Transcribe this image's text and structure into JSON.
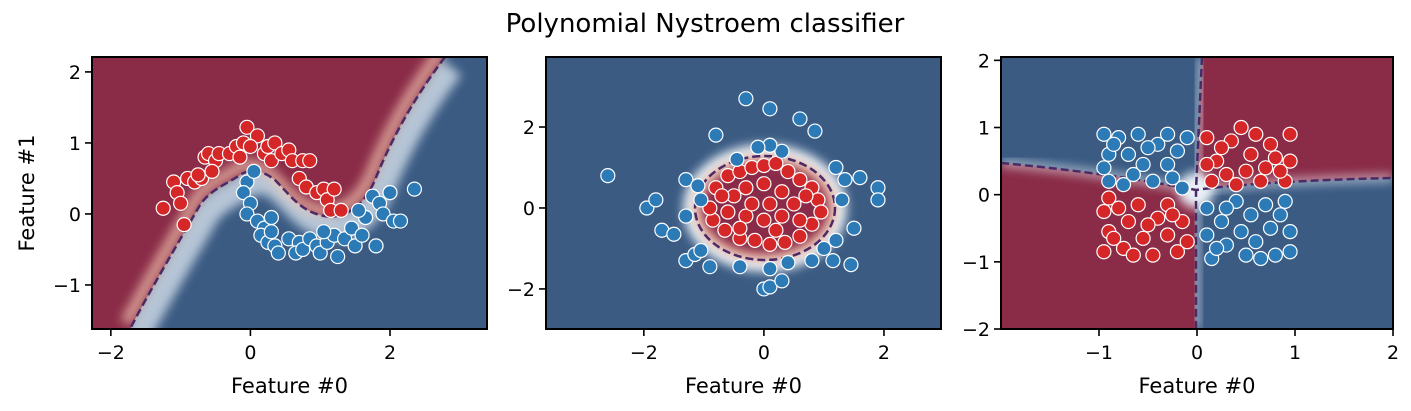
{
  "title": "Polynomial Nystroem classifier",
  "chart_data": [
    {
      "type": "scatter",
      "xlabel": "Feature #0",
      "ylabel": "Feature #1",
      "xlim": [
        -2.27,
        3.39
      ],
      "ylim": [
        -1.62,
        2.21
      ],
      "xticks": [
        {
          "value": -2,
          "label": "−2"
        },
        0,
        2
      ],
      "yticks": [
        {
          "value": -1,
          "label": "−1"
        },
        0,
        1,
        2
      ],
      "series": [
        {
          "color": "#d62728",
          "x": [
            -1.25,
            -1.1,
            -1.05,
            -1.0,
            -0.95,
            -0.9,
            -0.8,
            -0.7,
            -0.65,
            -0.6,
            -0.5,
            -0.45,
            -0.3,
            -0.2,
            -0.15,
            -0.1,
            -0.05,
            0.1,
            0.2,
            0.25,
            0.3,
            0.35,
            0.45,
            0.55,
            0.6,
            0.75,
            0.85,
            0.7,
            0.8,
            0.95,
            1.05,
            1.1,
            1.15,
            1.3,
            1.2,
            -0.75,
            -0.55,
            0.0
          ],
          "values": [
            0.08,
            0.45,
            0.3,
            0.15,
            -0.15,
            0.5,
            0.45,
            0.5,
            0.8,
            0.85,
            0.75,
            0.85,
            0.85,
            0.95,
            0.8,
            1.0,
            1.22,
            1.1,
            0.85,
            0.95,
            0.75,
            1.0,
            0.85,
            0.9,
            0.75,
            0.75,
            0.75,
            0.5,
            0.38,
            0.3,
            0.35,
            0.2,
            0.05,
            0.05,
            0.35,
            0.55,
            0.6,
            0.95
          ]
        },
        {
          "color": "#2c7bb6",
          "x": [
            -0.05,
            -0.1,
            0.05,
            0.0,
            -0.05,
            0.1,
            0.2,
            0.15,
            0.25,
            0.35,
            0.3,
            0.55,
            0.7,
            0.65,
            0.75,
            0.85,
            0.95,
            1.0,
            1.1,
            1.2,
            1.25,
            1.35,
            1.45,
            1.5,
            1.6,
            1.65,
            1.75,
            1.85,
            1.9,
            2.0,
            2.05,
            2.15,
            2.35,
            1.55,
            0.3,
            1.05,
            0.4,
            1.8
          ],
          "values": [
            0.45,
            0.3,
            0.6,
            0.15,
            0.0,
            -0.1,
            -0.2,
            -0.3,
            -0.4,
            -0.45,
            -0.25,
            -0.35,
            -0.4,
            -0.55,
            -0.5,
            -0.35,
            -0.45,
            -0.55,
            -0.4,
            -0.3,
            -0.6,
            -0.35,
            -0.2,
            -0.45,
            -0.3,
            -0.05,
            0.25,
            0.15,
            0.0,
            0.3,
            -0.1,
            -0.1,
            0.35,
            0.05,
            -0.05,
            -0.25,
            -0.55,
            -0.45
          ]
        }
      ]
    },
    {
      "type": "scatter",
      "xlabel": "Feature #0",
      "xlim": [
        -3.63,
        2.95
      ],
      "ylim": [
        -2.99,
        3.73
      ],
      "xticks": [
        {
          "value": -2,
          "label": "−2"
        },
        0,
        2
      ],
      "yticks": [
        {
          "value": -2,
          "label": "−2"
        },
        0,
        2
      ],
      "series": [
        {
          "color": "#d62728",
          "x": [
            -0.8,
            -0.6,
            -0.4,
            -0.2,
            0,
            0.2,
            0.4,
            0.6,
            0.8,
            0.9,
            0.95,
            0.8,
            0.6,
            0.35,
            0.1,
            -0.15,
            -0.4,
            -0.65,
            -0.85,
            -0.9,
            -0.5,
            -0.3,
            0,
            0.3,
            0.5,
            0.3,
            0,
            -0.3,
            -0.6,
            0.1,
            -0.2,
            0.6,
            -0.4,
            0.2,
            0.7,
            -0.7
          ],
          "values": [
            0.5,
            0.8,
            0.9,
            1.0,
            1.05,
            1.1,
            0.9,
            0.7,
            0.5,
            0.2,
            -0.1,
            -0.4,
            -0.7,
            -0.85,
            -0.9,
            -0.8,
            -0.75,
            -0.55,
            -0.3,
            0,
            0.3,
            0.5,
            0.6,
            0.4,
            0.1,
            -0.2,
            -0.3,
            -0.2,
            -0.1,
            0.1,
            0.1,
            -0.3,
            -0.5,
            -0.55,
            0.3,
            0.3
          ]
        },
        {
          "color": "#2c7bb6",
          "x": [
            -2.6,
            -1.95,
            -1.8,
            -1.7,
            -1.5,
            -1.3,
            -1.15,
            -1.3,
            -1.1,
            -1.05,
            -0.8,
            -0.45,
            -0.3,
            0.1,
            0.3,
            0.6,
            0.85,
            0.1,
            -0.1,
            1.2,
            1.35,
            1.6,
            1.9,
            1.9,
            1.5,
            1.2,
            1.45,
            1.15,
            0.8,
            0.4,
            0.1,
            0.0,
            0.1,
            -0.4,
            -0.9,
            -1.05,
            0.3,
            1.0,
            -1.3,
            1.3
          ],
          "values": [
            0.8,
            0,
            0.2,
            -0.55,
            -0.65,
            -1.3,
            -1.15,
            0.7,
            0.55,
            0.2,
            1.8,
            1.2,
            2.7,
            2.45,
            1.4,
            2.2,
            1.9,
            1.55,
            1.5,
            1.0,
            0.7,
            0.75,
            0.5,
            0.2,
            -0.5,
            -0.8,
            -1.4,
            -1.3,
            -1.3,
            -1.35,
            -1.5,
            -2.0,
            -1.95,
            -1.45,
            -1.45,
            -1.05,
            -1.8,
            -1.0,
            -0.2,
            0.2
          ]
        }
      ]
    },
    {
      "type": "scatter",
      "xlabel": "Feature #0",
      "xlim": [
        -2,
        2
      ],
      "ylim": [
        -2,
        2.05
      ],
      "xticks": [
        {
          "value": -1,
          "label": "−1"
        },
        0,
        1,
        2
      ],
      "yticks": [
        {
          "value": -2,
          "label": "−2"
        },
        {
          "value": -1,
          "label": "−1"
        },
        0,
        1,
        2
      ],
      "series": [
        {
          "color": "#d62728",
          "x": [
            0.1,
            0.2,
            0.3,
            0.35,
            0.45,
            0.55,
            0.6,
            0.7,
            0.8,
            0.9,
            0.95,
            0.95,
            0.15,
            0.4,
            0.65,
            0.25,
            0.5,
            0.75,
            0.85,
            0.1,
            -0.95,
            -0.9,
            -0.95,
            -0.9,
            -0.75,
            -0.7,
            -0.6,
            -0.55,
            -0.45,
            -0.4,
            -0.3,
            -0.3,
            -0.2,
            -0.15,
            -0.1,
            -0.65,
            -0.8,
            -0.5,
            -0.25,
            -0.85
          ],
          "values": [
            0.85,
            0.5,
            0.3,
            0.8,
            1.0,
            0.6,
            0.9,
            0.4,
            0.55,
            0.2,
            0.9,
            0.5,
            0.2,
            0.15,
            0.2,
            0.7,
            0.35,
            0.75,
            0.35,
            0.45,
            -0.85,
            -0.55,
            -0.25,
            -0.05,
            -0.8,
            -0.4,
            -0.15,
            -0.65,
            -0.9,
            -0.35,
            -0.6,
            -0.15,
            -0.85,
            -0.4,
            -0.7,
            -0.9,
            -0.2,
            -0.45,
            -0.3,
            -0.65
          ]
        },
        {
          "color": "#2c7bb6",
          "x": [
            -0.95,
            -0.9,
            -0.95,
            -0.9,
            -0.8,
            -0.7,
            -0.6,
            -0.55,
            -0.45,
            -0.4,
            -0.3,
            -0.3,
            -0.2,
            -0.15,
            -0.1,
            -0.65,
            -0.75,
            -0.5,
            -0.25,
            -0.85,
            0.1,
            0.1,
            0.15,
            0.25,
            0.3,
            0.4,
            0.45,
            0.5,
            0.55,
            0.6,
            0.7,
            0.75,
            0.8,
            0.85,
            0.95,
            0.95,
            0.3,
            0.65,
            0.2,
            0.9
          ],
          "values": [
            0.9,
            0.6,
            0.4,
            0.2,
            0.85,
            0.6,
            0.9,
            0.45,
            0.2,
            0.75,
            0.9,
            0.45,
            0.65,
            0.1,
            0.85,
            0.3,
            0.15,
            0.7,
            0.25,
            0.75,
            -0.2,
            -0.6,
            -0.95,
            -0.4,
            -0.75,
            -0.1,
            -0.55,
            -0.9,
            -0.3,
            -0.7,
            -0.15,
            -0.5,
            -0.9,
            -0.3,
            -0.55,
            -0.85,
            -0.2,
            -0.95,
            -0.8,
            -0.1
          ]
        }
      ]
    }
  ]
}
